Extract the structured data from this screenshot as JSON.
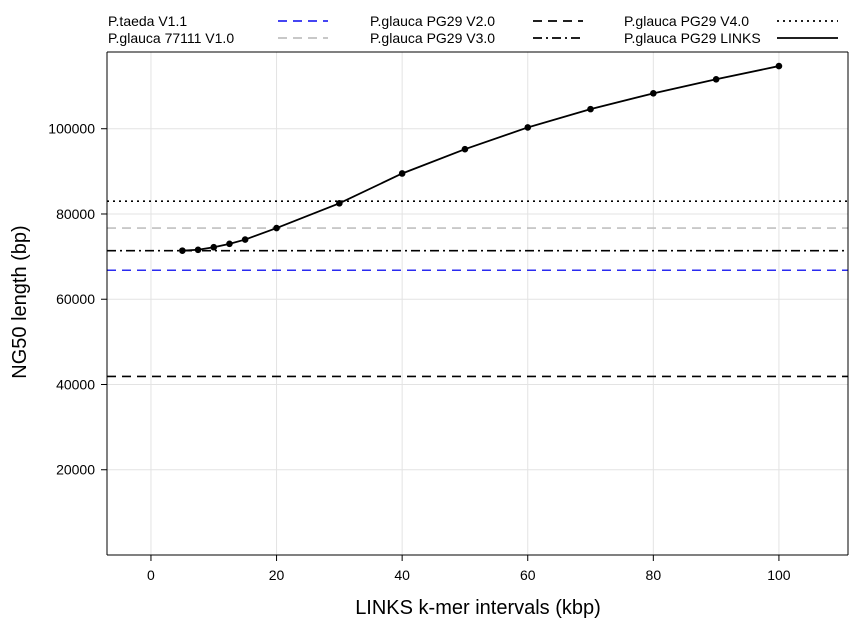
{
  "chart_data": {
    "type": "line",
    "xlabel": "LINKS k-mer intervals (kbp)",
    "ylabel": "NG50 length (bp)",
    "xlim": [
      -7,
      111
    ],
    "ylim": [
      0,
      118000
    ],
    "x_ticks": [
      0,
      20,
      40,
      60,
      80,
      100
    ],
    "y_ticks": [
      20000,
      40000,
      60000,
      80000,
      100000
    ],
    "grid": true,
    "legend_position": "top",
    "reference_lines": [
      {
        "name": "P.taeda V1.1",
        "value": 66800,
        "color": "#2b2bf0",
        "style": "dashed"
      },
      {
        "name": "P.glauca 77111 V1.0",
        "value": 76700,
        "color": "#c0c0c0",
        "style": "dashed"
      },
      {
        "name": "P.glauca PG29 V2.0",
        "value": 41900,
        "color": "#000000",
        "style": "dashed"
      },
      {
        "name": "P.glauca PG29 V3.0",
        "value": 71400,
        "color": "#000000",
        "style": "dashdot"
      },
      {
        "name": "P.glauca PG29 V4.0",
        "value": 83000,
        "color": "#000000",
        "style": "dotted"
      }
    ],
    "series": [
      {
        "name": "P.glauca PG29 LINKS",
        "color": "#000000",
        "style": "solid",
        "x": [
          5,
          7.5,
          10,
          12.5,
          15,
          20,
          30,
          40,
          50,
          60,
          70,
          80,
          90,
          100
        ],
        "y": [
          71400,
          71600,
          72200,
          73000,
          74000,
          76700,
          82500,
          89500,
          95200,
          100300,
          104600,
          108300,
          111600,
          114700
        ]
      }
    ]
  }
}
